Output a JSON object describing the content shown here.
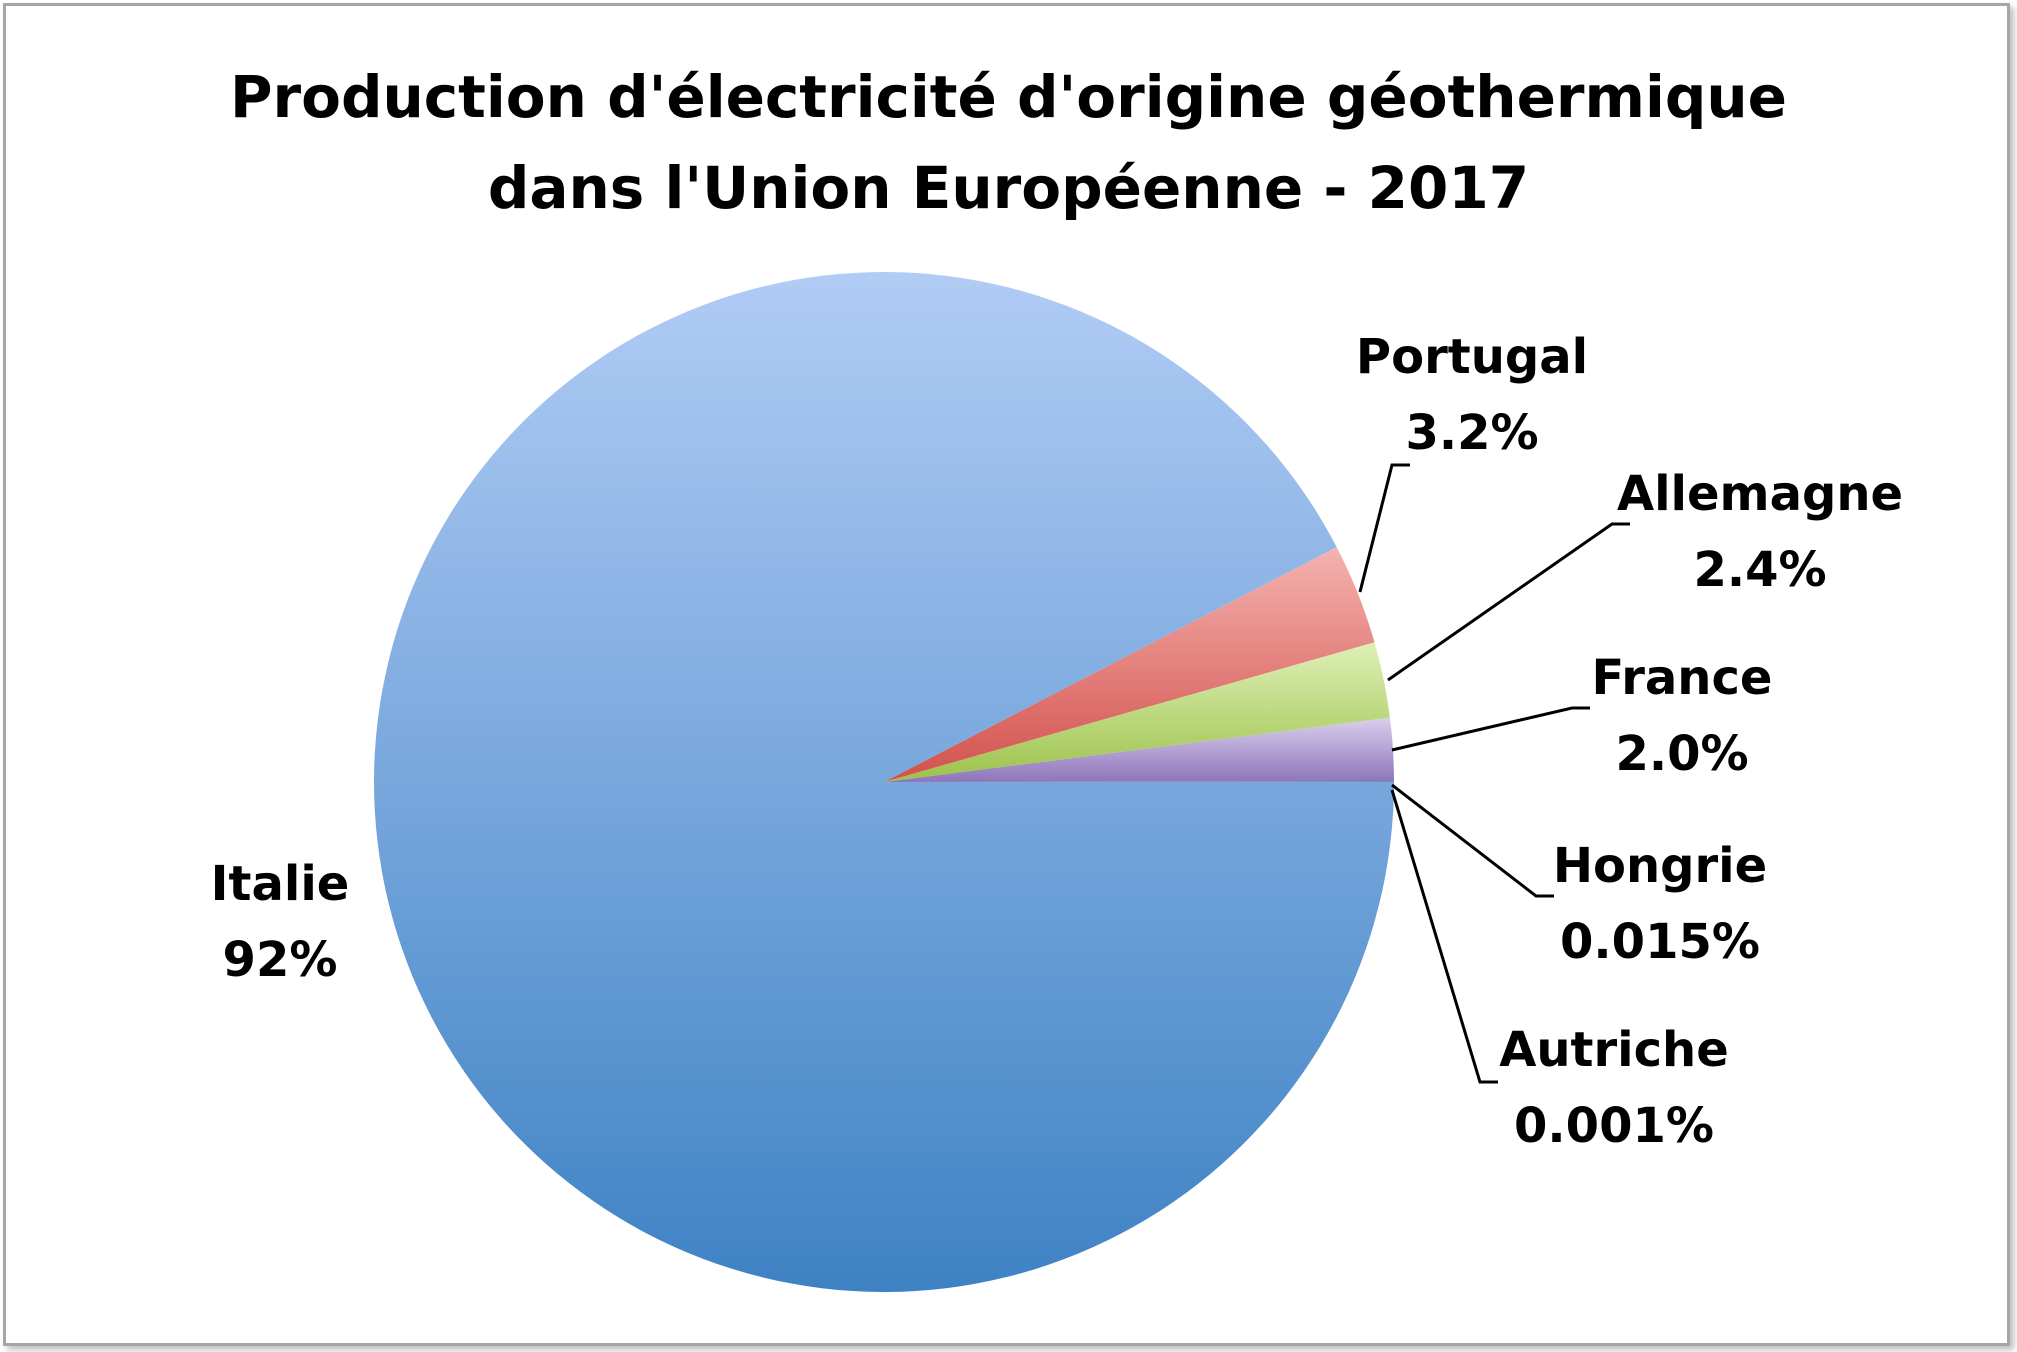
{
  "chart_data": {
    "type": "pie",
    "title": "Production d'électricité d'origine géothermique dans l'Union Européenne - 2017",
    "title_lines": [
      "Production d'électricité d'origine géothermique",
      "dans l'Union Européenne - 2017"
    ],
    "slices": [
      {
        "name": "Italie",
        "value": 92.364,
        "label": "92%",
        "color": "#4a86c8"
      },
      {
        "name": "Portugal",
        "value": 3.2,
        "label": "3.2%",
        "color": "#e37a76"
      },
      {
        "name": "Allemagne",
        "value": 2.4,
        "label": "2.4%",
        "color": "#b9d873"
      },
      {
        "name": "France",
        "value": 2.0,
        "label": "2.0%",
        "color": "#a996cc"
      },
      {
        "name": "Hongrie",
        "value": 0.015,
        "label": "0.015%",
        "color": "#4bacc6"
      },
      {
        "name": "Autriche",
        "value": 0.001,
        "label": "0.001%",
        "color": "#f79646"
      }
    ],
    "start_angle_deg": 0,
    "direction": "counterclockwise",
    "legend": "none",
    "data_labels": "outside-with-leader-lines"
  }
}
